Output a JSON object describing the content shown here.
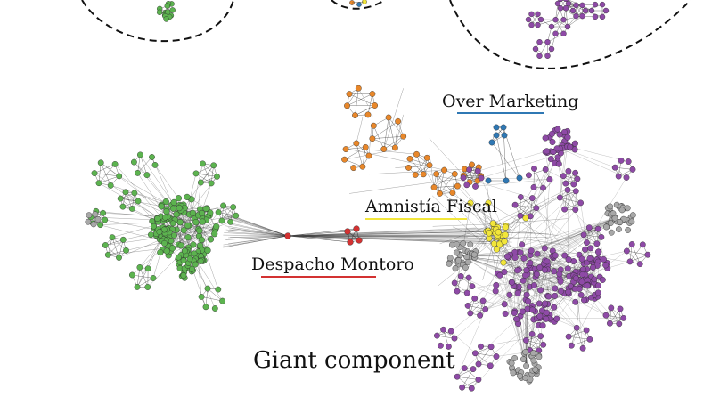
{
  "title": "Giant component",
  "colors": {
    "green": "#5cb34f",
    "purple": "#8e4aa6",
    "orange": "#e8872a",
    "blue": "#2f78b4",
    "yellow": "#f2e63a",
    "red": "#d33232",
    "gray": "#a8a8a8",
    "edge": "#3a3a3a"
  },
  "communities": [
    {
      "id": "over_marketing",
      "label": "Over Marketing",
      "underline_color": "#2f78b4"
    },
    {
      "id": "amnistia_fiscal",
      "label": "Amnistía Fiscal",
      "underline_color": "#f2e63a"
    },
    {
      "id": "despacho_montoro",
      "label": "Despacho Montoro",
      "underline_color": "#d33232"
    }
  ]
}
